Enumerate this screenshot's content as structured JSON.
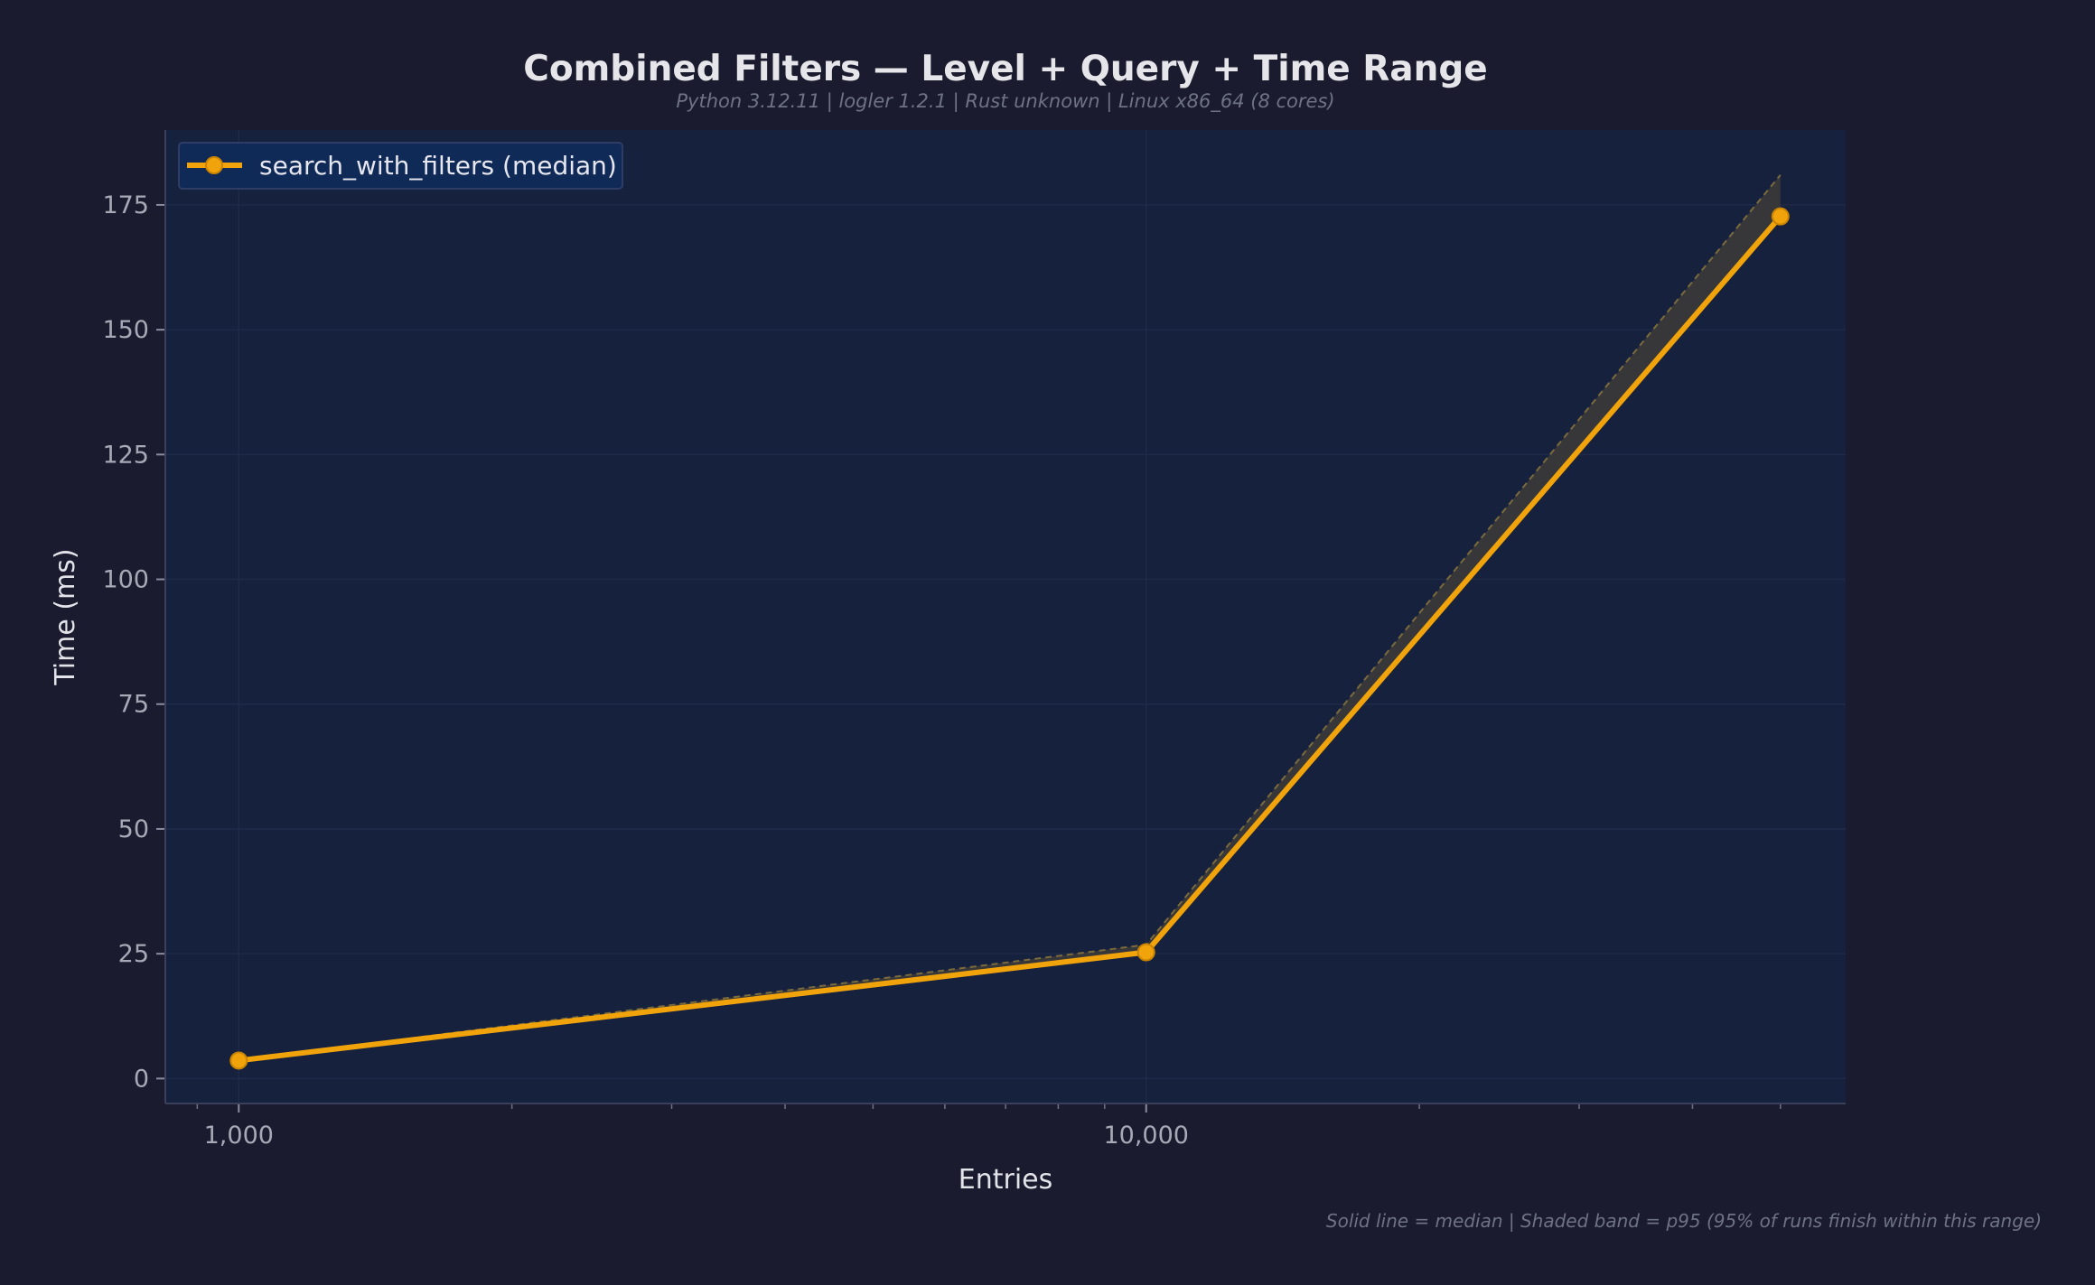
{
  "chart_data": {
    "type": "line",
    "title": "Combined Filters — Level + Query + Time Range",
    "subtitle": "Python 3.12.11 | logler 1.2.1 | Rust unknown | Linux x86_64 (8 cores)",
    "xlabel": "Entries",
    "ylabel": "Time (ms)",
    "x_scale": "log",
    "x_ticks": [
      {
        "value": 1000,
        "label": "1,000"
      },
      {
        "value": 10000,
        "label": "10,000"
      }
    ],
    "y_ticks": [
      {
        "value": 0,
        "label": "0"
      },
      {
        "value": 25,
        "label": "25"
      },
      {
        "value": 50,
        "label": "50"
      },
      {
        "value": 75,
        "label": "75"
      },
      {
        "value": 100,
        "label": "100"
      },
      {
        "value": 125,
        "label": "125"
      },
      {
        "value": 150,
        "label": "150"
      },
      {
        "value": 175,
        "label": "175"
      }
    ],
    "xlim": [
      830,
      59000
    ],
    "ylim": [
      -5,
      190
    ],
    "grid": true,
    "legend_position": "top-left",
    "series": [
      {
        "name": "search_with_filters (median)",
        "color": "#f0a30a",
        "x": [
          1000,
          10000,
          50000
        ],
        "median": [
          3.6,
          25.3,
          172.7
        ],
        "p95": [
          3.7,
          26.8,
          181.0
        ]
      }
    ],
    "footnote": "Solid line = median  |  Shaded band = p95 (95% of runs finish within this range)"
  },
  "colors": {
    "page_bg": "#1a1b2e",
    "plot_bg": "#16213e",
    "line": "#f0a30a",
    "band": "#3b3a3a",
    "band_edge": "#7a6a3c",
    "grid": "#1f2a48",
    "spine": "#3a3f5c"
  }
}
